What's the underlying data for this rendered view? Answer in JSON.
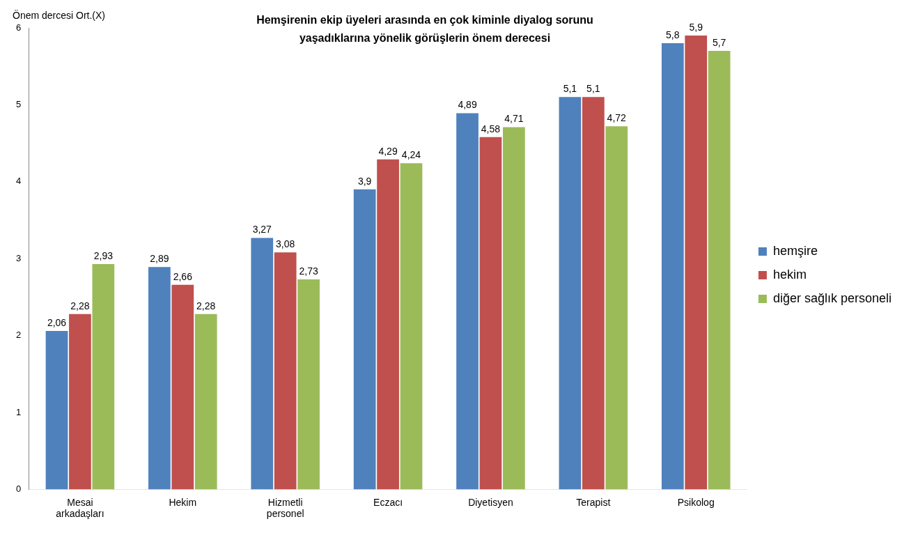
{
  "chart_data": {
    "type": "bar",
    "title": "Hemşirenin ekip üyeleri arasında en çok kiminle diyalog sorunu yaşadıklarına yönelik görüşlerin önem derecesi",
    "ylabel": "Önem dercesi Ort.(X)",
    "categories": [
      "Mesai arkadaşları",
      "Hekim",
      "Hizmetli personel",
      "Eczacı",
      "Diyetisyen",
      "Terapist",
      "Psikolog"
    ],
    "series": [
      {
        "name": "hemşire",
        "color": "#4f81bd",
        "values": [
          2.06,
          2.89,
          3.27,
          3.9,
          4.89,
          5.1,
          5.8
        ],
        "value_labels": [
          "2,06",
          "2,89",
          "3,27",
          "3,9",
          "4,89",
          "5,1",
          "5,8"
        ]
      },
      {
        "name": "hekim",
        "color": "#c0504d",
        "values": [
          2.28,
          2.66,
          3.08,
          4.29,
          4.58,
          5.1,
          5.9
        ],
        "value_labels": [
          "2,28",
          "2,66",
          "3,08",
          "4,29",
          "4,58",
          "5,1",
          "5,9"
        ]
      },
      {
        "name": "diğer sağlık personeli",
        "color": "#9bbb59",
        "values": [
          2.93,
          2.28,
          2.73,
          4.24,
          4.71,
          4.72,
          5.7
        ],
        "value_labels": [
          "2,93",
          "2,28",
          "2,73",
          "4,24",
          "4,71",
          "4,72",
          "5,7"
        ]
      }
    ],
    "ylim": [
      0,
      6
    ],
    "yticks": [
      0,
      1,
      2,
      3,
      4,
      5,
      6
    ],
    "grid": false,
    "legend": "right"
  }
}
